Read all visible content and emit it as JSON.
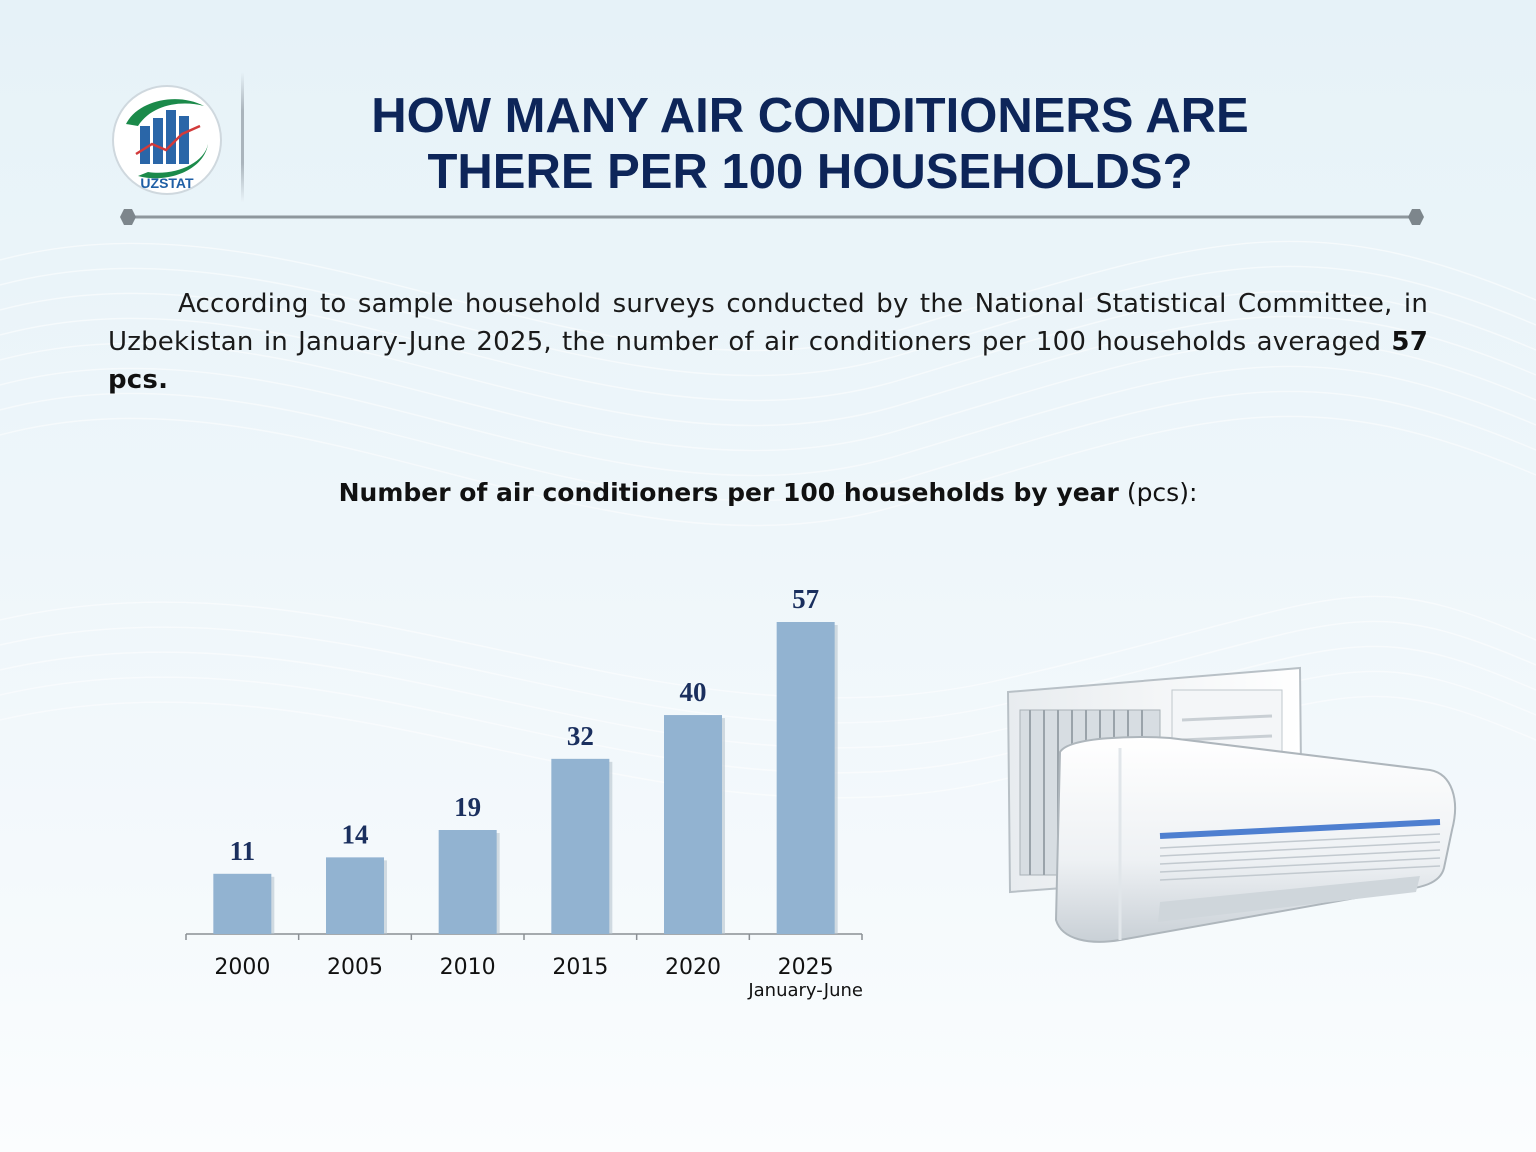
{
  "logo": {
    "text": "UZSTAT",
    "icon": "uzstat-logo-icon"
  },
  "title": {
    "line1": "HOW MANY AIR CONDITIONERS ARE",
    "line2": "THERE PER 100 HOUSEHOLDS?"
  },
  "intro": {
    "text": "According to sample household surveys conducted by the National Statistical Committee, in Uzbekistan in January-June 2025, the number of air conditioners per 100 households averaged ",
    "highlight": "57 pcs."
  },
  "chart_title": {
    "bold": "Number of air conditioners per 100 households by year",
    "unit": "(pcs):"
  },
  "colors": {
    "title": "#0d2559",
    "bar": "#92b3d1",
    "label": "#1a2f5e"
  },
  "image": {
    "icon": "air-conditioner-icon"
  },
  "chart_data": {
    "type": "bar",
    "categories": [
      "2000",
      "2005",
      "2010",
      "2015",
      "2020",
      "2025"
    ],
    "category_sublabels": [
      "",
      "",
      "",
      "",
      "",
      "January-June"
    ],
    "values": [
      11,
      14,
      19,
      32,
      40,
      57
    ],
    "ylim": [
      0,
      57
    ],
    "grid": false,
    "legend": "none"
  }
}
